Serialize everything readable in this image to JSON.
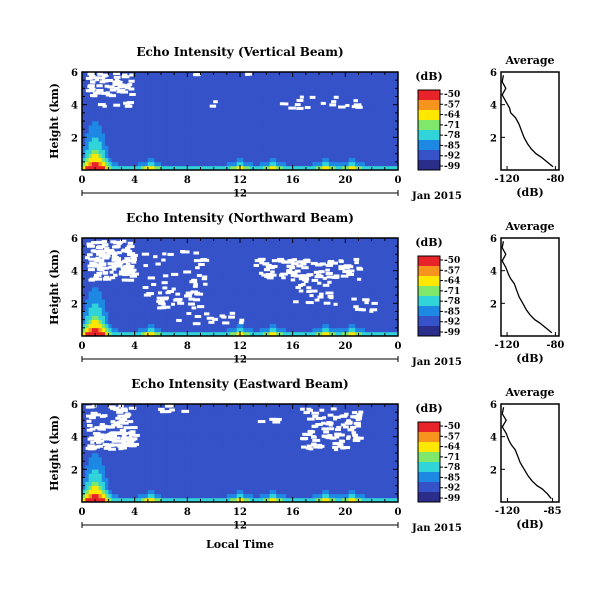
{
  "figure": {
    "x_axis_label": "Local Time",
    "date_label": "Jan 2015",
    "y_axis_label": "Height (km)",
    "colorbar_unit": "(dB)",
    "avg_title": "Average",
    "avg_xlabel": "(dB)",
    "colorbar_ticks": [
      "-50",
      "-57",
      "-64",
      "-71",
      "-78",
      "-85",
      "-92",
      "-99"
    ],
    "colorbar_colors": [
      "#e8232a",
      "#f7941d",
      "#ffe800",
      "#7fe86a",
      "#30d4d9",
      "#1e88e5",
      "#3552c9",
      "#2b2d8a"
    ],
    "background_color": "#262c72"
  },
  "chart_data": [
    {
      "type": "heatmap",
      "title": "Echo Intensity (Vertical Beam)",
      "x_ticks": [
        "0",
        "4",
        "8",
        "12",
        "16",
        "20",
        "0"
      ],
      "x_tick_values": [
        0,
        4,
        8,
        12,
        16,
        20,
        24
      ],
      "x_secondary_label": "12",
      "xlim": [
        0,
        24
      ],
      "y_ticks": [
        "2",
        "4",
        "6"
      ],
      "y_tick_values": [
        2,
        4,
        6
      ],
      "ylim": [
        0,
        6
      ],
      "color_range_db": [
        -99,
        -50
      ],
      "profile": {
        "title": "Average",
        "x_ticks": [
          "-120",
          "-80"
        ],
        "x_tick_values": [
          -120,
          -80
        ],
        "xlim": [
          -125,
          -77
        ],
        "heights_km": [
          0.2,
          0.5,
          0.8,
          1.0,
          1.3,
          1.6,
          2.0,
          2.4,
          2.8,
          3.2,
          3.5,
          3.8,
          4.2,
          4.6,
          5.0,
          5.4,
          5.8
        ],
        "values_db": [
          -82,
          -87,
          -92,
          -96,
          -100,
          -103,
          -106,
          -108,
          -110,
          -113,
          -117,
          -118,
          -121,
          -124,
          -121,
          -124,
          -123
        ]
      }
    },
    {
      "type": "heatmap",
      "title": "Echo Intensity (Northward Beam)",
      "x_ticks": [
        "0",
        "4",
        "8",
        "12",
        "16",
        "20",
        "0"
      ],
      "x_tick_values": [
        0,
        4,
        8,
        12,
        16,
        20,
        24
      ],
      "x_secondary_label": "12",
      "xlim": [
        0,
        24
      ],
      "y_ticks": [
        "2",
        "4",
        "6"
      ],
      "y_tick_values": [
        2,
        4,
        6
      ],
      "ylim": [
        0,
        6
      ],
      "color_range_db": [
        -99,
        -50
      ],
      "profile": {
        "title": "Average",
        "x_ticks": [
          "-120",
          "-80"
        ],
        "x_tick_values": [
          -120,
          -80
        ],
        "xlim": [
          -125,
          -77
        ],
        "heights_km": [
          0.2,
          0.5,
          0.8,
          1.0,
          1.3,
          1.6,
          2.0,
          2.4,
          2.8,
          3.2,
          3.5,
          3.8,
          4.2,
          4.6,
          5.0,
          5.4,
          5.8
        ],
        "values_db": [
          -83,
          -88,
          -93,
          -97,
          -101,
          -104,
          -107,
          -110,
          -112,
          -114,
          -117,
          -119,
          -121,
          -124,
          -121,
          -124,
          -123
        ]
      }
    },
    {
      "type": "heatmap",
      "title": "Echo Intensity (Eastward Beam)",
      "x_ticks": [
        "0",
        "4",
        "8",
        "12",
        "16",
        "20",
        "0"
      ],
      "x_tick_values": [
        0,
        4,
        8,
        12,
        16,
        20,
        24
      ],
      "x_secondary_label": "12",
      "xlim": [
        0,
        24
      ],
      "y_ticks": [
        "2",
        "4",
        "6"
      ],
      "y_tick_values": [
        2,
        4,
        6
      ],
      "ylim": [
        0,
        6
      ],
      "color_range_db": [
        -99,
        -50
      ],
      "profile": {
        "title": "Average",
        "x_ticks": [
          "-120",
          "-85"
        ],
        "x_tick_values": [
          -120,
          -85
        ],
        "xlim": [
          -125,
          -80
        ],
        "heights_km": [
          0.2,
          0.5,
          0.8,
          1.0,
          1.3,
          1.6,
          2.0,
          2.4,
          2.8,
          3.2,
          3.5,
          3.8,
          4.2,
          4.6,
          5.0,
          5.4,
          5.8
        ],
        "values_db": [
          -86,
          -89,
          -93,
          -97,
          -101,
          -104,
          -107,
          -110,
          -112,
          -114,
          -117,
          -119,
          -121,
          -124,
          -121,
          -124,
          -123
        ]
      }
    }
  ]
}
